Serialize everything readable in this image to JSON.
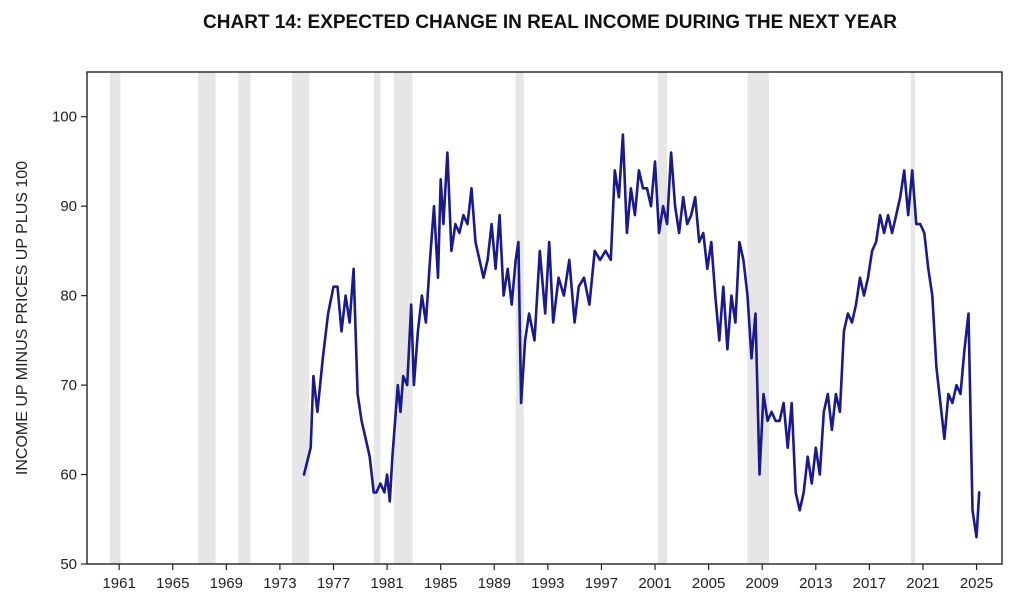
{
  "chart_data": {
    "type": "line",
    "title": "CHART 14: EXPECTED CHANGE IN REAL INCOME DURING THE NEXT YEAR",
    "xlabel": "",
    "ylabel": "INCOME UP MINUS PRICES UP PLUS 100",
    "ylim": [
      50,
      105
    ],
    "xlim": [
      1958.6,
      2026.9
    ],
    "yticks": [
      50,
      60,
      70,
      80,
      90,
      100
    ],
    "xticks": [
      1961,
      1965,
      1969,
      1973,
      1977,
      1981,
      1985,
      1989,
      1993,
      1997,
      2001,
      2005,
      2009,
      2013,
      2017,
      2021,
      2025
    ],
    "grid": false,
    "colors": {
      "line": "#1a1a8c",
      "recession": "#e6e6e6",
      "frame": "#222222"
    },
    "recessions": [
      [
        1960.3,
        1961.1
      ],
      [
        1966.9,
        1968.2
      ],
      [
        1969.9,
        1970.8
      ],
      [
        1973.9,
        1975.2
      ],
      [
        1980.0,
        1980.5
      ],
      [
        1981.5,
        1982.9
      ],
      [
        1990.6,
        1991.2
      ],
      [
        2001.2,
        2001.9
      ],
      [
        2007.9,
        2009.5
      ],
      [
        2020.1,
        2020.4
      ]
    ],
    "series": [
      {
        "name": "Expected change in real income",
        "x": [
          1974.8,
          1975.3,
          1975.5,
          1975.8,
          1976.2,
          1976.6,
          1977.0,
          1977.3,
          1977.6,
          1977.9,
          1978.2,
          1978.5,
          1978.8,
          1979.1,
          1979.4,
          1979.7,
          1980.0,
          1980.2,
          1980.5,
          1980.8,
          1981.0,
          1981.2,
          1981.4,
          1981.6,
          1981.8,
          1982.0,
          1982.2,
          1982.5,
          1982.8,
          1983.0,
          1983.3,
          1983.6,
          1983.9,
          1984.2,
          1984.5,
          1984.8,
          1985.0,
          1985.2,
          1985.5,
          1985.8,
          1986.1,
          1986.4,
          1986.7,
          1987.0,
          1987.3,
          1987.6,
          1987.9,
          1988.2,
          1988.5,
          1988.8,
          1989.1,
          1989.4,
          1989.7,
          1990.0,
          1990.3,
          1990.6,
          1990.8,
          1991.0,
          1991.3,
          1991.6,
          1992.0,
          1992.4,
          1992.8,
          1993.1,
          1993.4,
          1993.8,
          1994.2,
          1994.6,
          1995.0,
          1995.3,
          1995.7,
          1996.1,
          1996.5,
          1996.9,
          1997.3,
          1997.7,
          1998.0,
          1998.3,
          1998.6,
          1998.9,
          1999.2,
          1999.5,
          1999.8,
          2000.1,
          2000.4,
          2000.7,
          2001.0,
          2001.3,
          2001.6,
          2001.9,
          2002.2,
          2002.5,
          2002.8,
          2003.1,
          2003.4,
          2003.7,
          2004.0,
          2004.3,
          2004.6,
          2004.9,
          2005.2,
          2005.5,
          2005.8,
          2006.1,
          2006.4,
          2006.7,
          2007.0,
          2007.3,
          2007.6,
          2007.9,
          2008.2,
          2008.5,
          2008.8,
          2009.1,
          2009.4,
          2009.7,
          2010.0,
          2010.3,
          2010.6,
          2010.9,
          2011.2,
          2011.5,
          2011.8,
          2012.1,
          2012.4,
          2012.7,
          2013.0,
          2013.3,
          2013.6,
          2013.9,
          2014.2,
          2014.5,
          2014.8,
          2015.1,
          2015.4,
          2015.7,
          2016.0,
          2016.3,
          2016.6,
          2016.9,
          2017.2,
          2017.5,
          2017.8,
          2018.1,
          2018.4,
          2018.7,
          2019.0,
          2019.3,
          2019.6,
          2019.9,
          2020.2,
          2020.5,
          2020.8,
          2021.1,
          2021.4,
          2021.7,
          2022.0,
          2022.3,
          2022.6,
          2022.9,
          2023.2,
          2023.5,
          2023.8,
          2024.1,
          2024.4,
          2024.7,
          2025.0,
          2025.2
        ],
        "values": [
          60,
          63,
          71,
          67,
          73,
          78,
          81,
          81,
          76,
          80,
          77,
          83,
          69,
          66,
          64,
          62,
          58,
          58,
          59,
          58,
          60,
          57,
          62,
          66,
          70,
          67,
          71,
          70,
          79,
          70,
          76,
          80,
          77,
          84,
          90,
          82,
          93,
          88,
          96,
          85,
          88,
          87,
          89,
          88,
          92,
          86,
          84,
          82,
          84,
          88,
          83,
          89,
          80,
          83,
          79,
          84,
          86,
          68,
          75,
          78,
          75,
          85,
          78,
          86,
          77,
          82,
          80,
          84,
          77,
          81,
          82,
          79,
          85,
          84,
          85,
          84,
          94,
          91,
          98,
          87,
          92,
          89,
          94,
          92,
          92,
          90,
          95,
          87,
          90,
          88,
          96,
          90,
          87,
          91,
          88,
          89,
          91,
          86,
          87,
          83,
          86,
          80,
          75,
          81,
          74,
          80,
          77,
          86,
          84,
          80,
          73,
          78,
          60,
          69,
          66,
          67,
          66,
          66,
          68,
          63,
          68,
          58,
          56,
          58,
          62,
          59,
          63,
          60,
          67,
          69,
          65,
          69,
          67,
          76,
          78,
          77,
          79,
          82,
          80,
          82,
          85,
          86,
          89,
          87,
          89,
          87,
          89,
          91,
          94,
          89,
          94,
          88,
          88,
          87,
          83,
          80,
          72,
          68,
          64,
          69,
          68,
          70,
          69,
          74,
          78,
          56,
          53,
          58
        ]
      }
    ]
  }
}
